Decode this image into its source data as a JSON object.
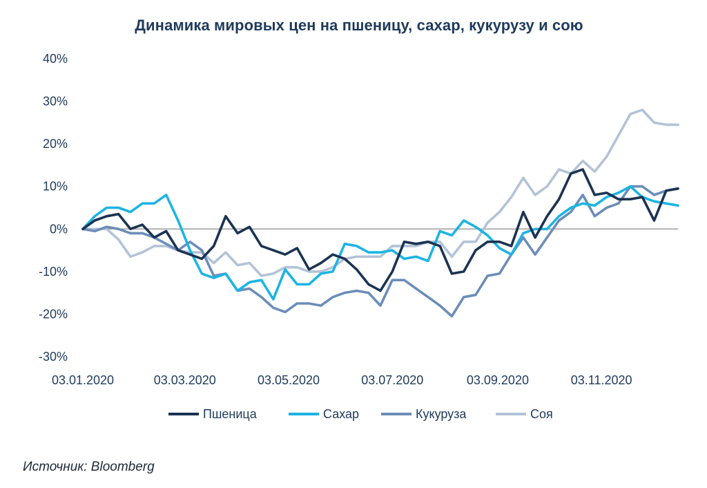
{
  "chart_data": {
    "type": "line",
    "title": "Динамика мировых цен на пшеницу, сахар, кукурузу и сою",
    "y_unit": "%",
    "ylim": [
      -30,
      40
    ],
    "y_ticks": [
      40,
      30,
      20,
      10,
      0,
      -10,
      -20,
      -30
    ],
    "y_tick_labels": [
      "40%",
      "30%",
      "20%",
      "10%",
      "0%",
      "-10%",
      "-20%",
      "-30%"
    ],
    "x_tick_labels": [
      "03.01.2020",
      "03.03.2020",
      "03.05.2020",
      "03.07.2020",
      "03.09.2020",
      "03.11.2020"
    ],
    "x_dates": [
      "2020-01-03",
      "2020-01-10",
      "2020-01-17",
      "2020-01-24",
      "2020-01-31",
      "2020-02-07",
      "2020-02-14",
      "2020-02-21",
      "2020-02-28",
      "2020-03-06",
      "2020-03-13",
      "2020-03-20",
      "2020-03-27",
      "2020-04-03",
      "2020-04-10",
      "2020-04-17",
      "2020-04-24",
      "2020-05-01",
      "2020-05-08",
      "2020-05-15",
      "2020-05-22",
      "2020-05-29",
      "2020-06-05",
      "2020-06-12",
      "2020-06-19",
      "2020-06-26",
      "2020-07-03",
      "2020-07-10",
      "2020-07-17",
      "2020-07-24",
      "2020-07-31",
      "2020-08-07",
      "2020-08-14",
      "2020-08-21",
      "2020-08-28",
      "2020-09-04",
      "2020-09-11",
      "2020-09-18",
      "2020-09-25",
      "2020-10-02",
      "2020-10-09",
      "2020-10-16",
      "2020-10-23",
      "2020-10-30",
      "2020-11-06",
      "2020-11-13",
      "2020-11-20",
      "2020-11-27",
      "2020-12-04",
      "2020-12-11",
      "2020-12-18"
    ],
    "grid": false,
    "zero_line": true,
    "legend_position": "bottom",
    "series": [
      {
        "name": "Пшеница",
        "color": "#1b3352",
        "values": [
          0,
          2,
          3,
          3.5,
          0,
          1,
          -2,
          -0.5,
          -5,
          -6,
          -7,
          -4,
          3,
          -1,
          0.5,
          -4,
          -5,
          -6,
          -4.5,
          -9.5,
          -8,
          -6,
          -7,
          -9.5,
          -13,
          -14.5,
          -10,
          -3,
          -3.5,
          -3,
          -4,
          -10.5,
          -10,
          -5,
          -3,
          -3,
          -4,
          4,
          -2,
          3,
          7,
          13,
          14,
          8,
          8.5,
          7,
          7,
          7.5,
          2,
          9,
          9.5
        ]
      },
      {
        "name": "Сахар",
        "color": "#1cb4e3",
        "values": [
          0,
          3,
          5,
          5,
          4,
          6,
          6,
          8,
          2,
          -5,
          -10.5,
          -11.5,
          -10.5,
          -14.5,
          -12.5,
          -12,
          -16.5,
          -9.5,
          -13,
          -13,
          -10.5,
          -10,
          -3.5,
          -4,
          -5.5,
          -5.5,
          -5,
          -7,
          -6.5,
          -7.5,
          -0.5,
          -1.5,
          2,
          0.5,
          -1.5,
          -4.5,
          -6,
          -1,
          0,
          0,
          3,
          5,
          6,
          5.5,
          7.5,
          8.5,
          10,
          7.5,
          6.5,
          6,
          5.5
        ]
      },
      {
        "name": "Кукуруза",
        "color": "#6b8db8",
        "values": [
          0,
          -0.5,
          0.5,
          0,
          -1,
          -1,
          -2,
          -3.5,
          -5,
          -3,
          -5,
          -11,
          -10.5,
          -14.5,
          -14,
          -16,
          -18.5,
          -19.5,
          -17.5,
          -17.5,
          -18,
          -16,
          -15,
          -14.5,
          -15,
          -18,
          -12,
          -12,
          -14,
          -16,
          -18,
          -20.5,
          -16,
          -15.5,
          -11,
          -10.5,
          -6,
          -2,
          -6,
          -2,
          2,
          4,
          8,
          3,
          5,
          6,
          10,
          10,
          8,
          9,
          9.5
        ]
      },
      {
        "name": "Соя",
        "color": "#b3c3d6",
        "values": [
          0,
          0,
          0,
          -2.5,
          -6.5,
          -5.5,
          -4,
          -4,
          -5,
          -5.5,
          -5.5,
          -8,
          -5.5,
          -8.5,
          -8,
          -11,
          -10.5,
          -9,
          -9,
          -10,
          -10,
          -9,
          -7,
          -6.5,
          -6.5,
          -6.5,
          -4,
          -4,
          -4,
          -3,
          -3,
          -6.5,
          -3,
          -3,
          1.5,
          4,
          7.5,
          12,
          8,
          10,
          14,
          13,
          16,
          13.5,
          17,
          22,
          27,
          28,
          25,
          24.5,
          24.5
        ]
      }
    ]
  },
  "source": {
    "text": "Источник: Bloomberg"
  }
}
